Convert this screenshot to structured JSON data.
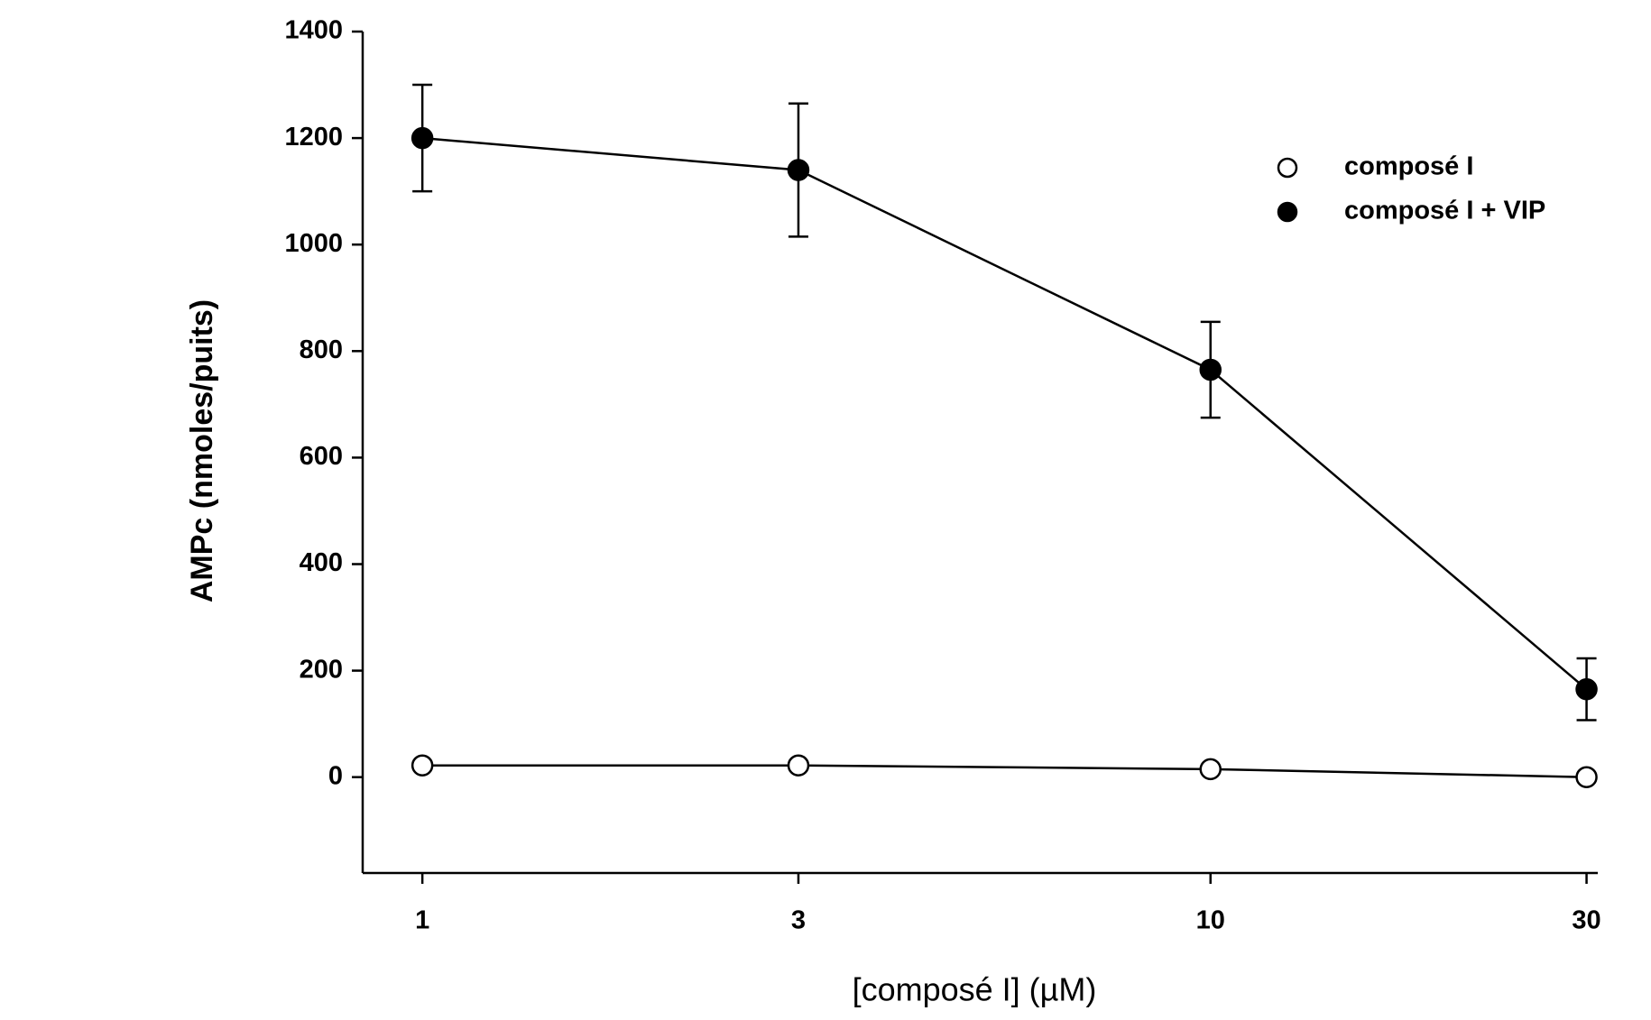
{
  "chart_data": {
    "type": "line",
    "xlabel": "[composé I]  (µM)",
    "ylabel": "AMPc (nmoles/puits)",
    "x": [
      1,
      3,
      10,
      30
    ],
    "xscale": "log",
    "xlim": [
      0.84,
      31
    ],
    "xticks": [
      1,
      3,
      10,
      30
    ],
    "ylim": [
      -180,
      1400
    ],
    "yticks": [
      0,
      200,
      400,
      600,
      800,
      1000,
      1200,
      1400
    ],
    "grid": false,
    "legend": "upper right",
    "series": [
      {
        "name": "composé I",
        "color": "#000000",
        "filled": false,
        "values": [
          22,
          22,
          15,
          0
        ]
      },
      {
        "name": "composé I + VIP",
        "color": "#000000",
        "filled": true,
        "values": [
          1200,
          1140,
          765,
          165
        ],
        "errors": [
          100,
          125,
          90,
          58
        ]
      }
    ]
  }
}
